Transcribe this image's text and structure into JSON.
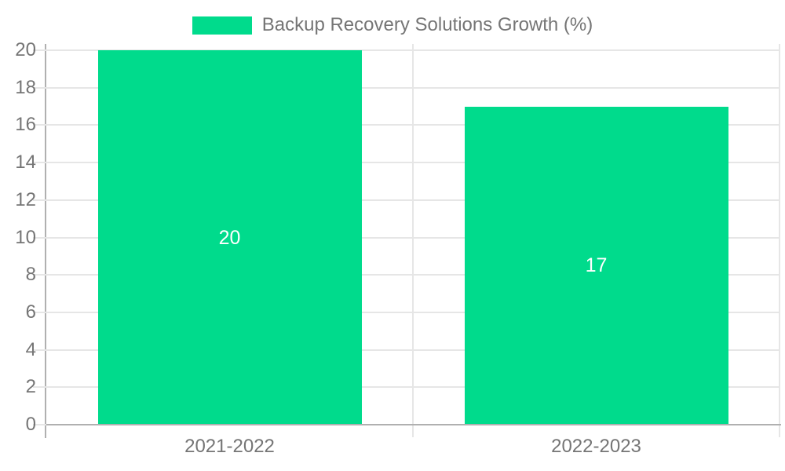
{
  "legend": {
    "label": "Backup Recovery Solutions Growth (%)",
    "position": "top"
  },
  "colors": {
    "bar": "#00DB8C",
    "grid": "#e6e6e6",
    "axis": "#b0b0b0",
    "tick_text": "#757575",
    "data_label": "#ffffff",
    "background": "#ffffff"
  },
  "chart_data": {
    "type": "bar",
    "title": "Backup Recovery Solutions Growth (%)",
    "categories": [
      "2021-2022",
      "2022-2023"
    ],
    "series": [
      {
        "name": "Backup Recovery Solutions Growth (%)",
        "values": [
          20,
          17
        ],
        "data_labels": [
          "20",
          "17"
        ],
        "color": "#00DB8C"
      }
    ],
    "xlabel": "",
    "ylabel": "",
    "ylim": [
      0,
      20
    ],
    "yticks": [
      0,
      2,
      4,
      6,
      8,
      10,
      12,
      14,
      16,
      18,
      20
    ],
    "grid": true,
    "legend_position": "top"
  }
}
